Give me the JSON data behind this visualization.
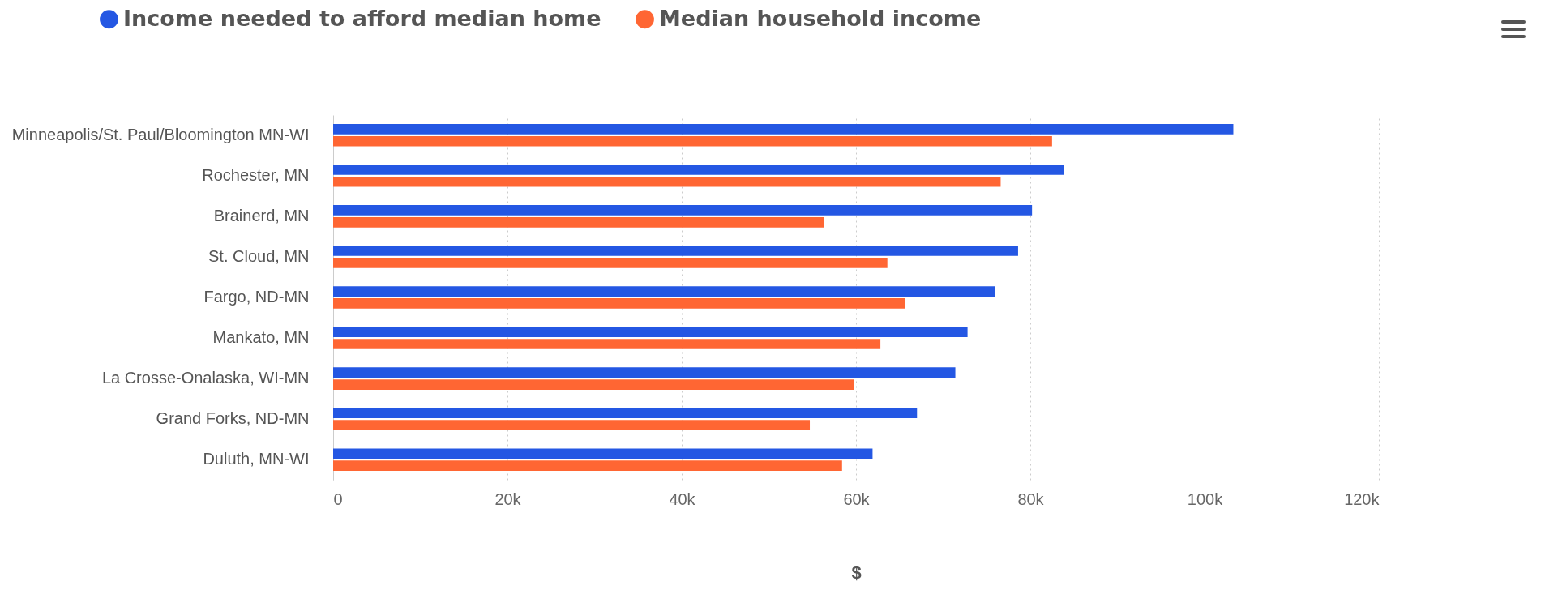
{
  "chart_data": {
    "type": "bar",
    "orientation": "horizontal",
    "xlabel": "$",
    "legend": "top",
    "grid": "x",
    "categories": [
      "Minneapolis/St. Paul/Bloomington MN-WI",
      "Rochester, MN",
      "Brainerd, MN",
      "St. Cloud, MN",
      "Fargo, ND-MN",
      "Mankato, MN",
      "La Crosse-Onalaska, WI-MN",
      "Grand Forks, ND-MN",
      "Duluth, MN-WI"
    ],
    "series": [
      {
        "name": "Income needed to afford median home",
        "color": "#2457e3",
        "values": [
          103300,
          83900,
          80200,
          78600,
          76000,
          72800,
          71400,
          67000,
          61900
        ]
      },
      {
        "name": "Median household income",
        "color": "#ff6633",
        "values": [
          82500,
          76600,
          56300,
          63600,
          65600,
          62800,
          59800,
          54700,
          58400
        ]
      }
    ],
    "xlim": [
      0,
      120000
    ],
    "xticks": [
      0,
      {
        "value": 20000,
        "label": "20k"
      },
      {
        "value": 40000,
        "label": "40k"
      },
      {
        "value": 60000,
        "label": "60k"
      },
      {
        "value": 80000,
        "label": "80k"
      },
      {
        "value": 100000,
        "label": "100k"
      },
      {
        "value": 120000,
        "label": "120k"
      }
    ]
  }
}
